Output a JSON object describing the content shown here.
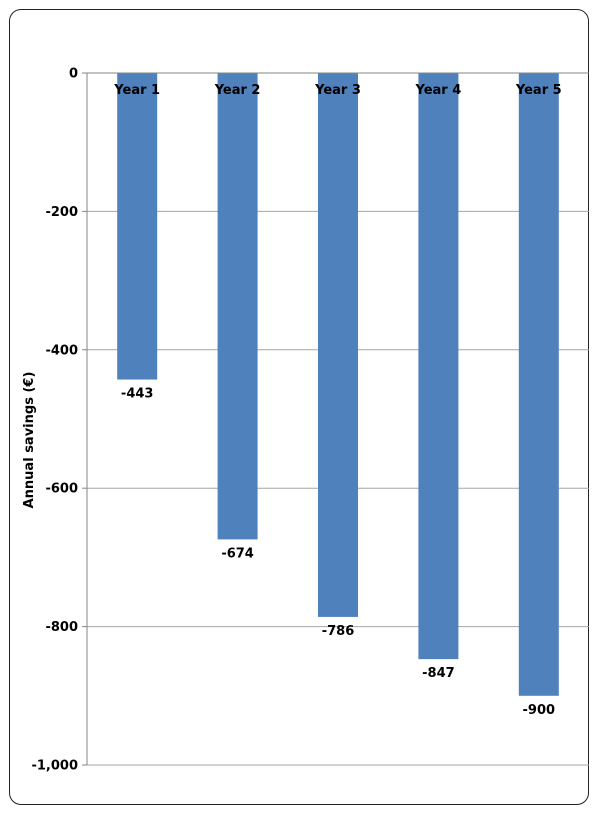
{
  "chart_data": {
    "type": "bar",
    "categories": [
      "Year 1",
      "Year 2",
      "Year 3",
      "Year 4",
      "Year 5"
    ],
    "values": [
      -443,
      -674,
      -786,
      -847,
      -900
    ],
    "data_labels": [
      "-443",
      "-674",
      "-786",
      "-847",
      "-900"
    ],
    "title": "",
    "xlabel": "",
    "ylabel": "Annual savings (€)",
    "ylim": [
      -1000,
      0
    ],
    "yticks": [
      0,
      -200,
      -400,
      -600,
      -800,
      -1000
    ],
    "ytick_labels": [
      "0",
      "-200",
      "-400",
      "-600",
      "-800",
      "-1,000"
    ],
    "grid": true,
    "colors": {
      "bar": "#4f81bd",
      "grid": "#a6a6a6",
      "axis": "#868686"
    }
  }
}
